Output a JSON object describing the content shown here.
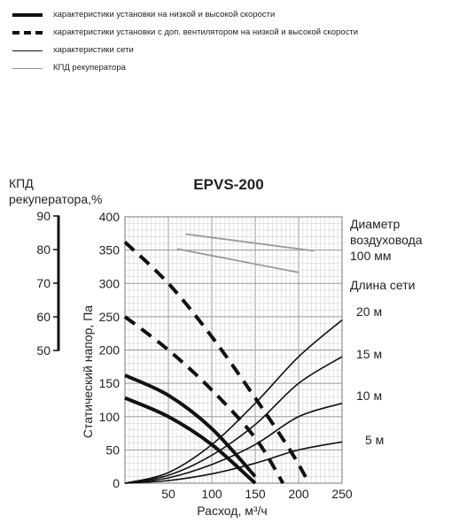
{
  "legend": [
    {
      "label": "характеристики установки на низкой и высокой скорости",
      "style": "thick-solid"
    },
    {
      "label": "характеристики установки с доп. вентилятором на низкой и высокой скорости",
      "style": "thick-dashed"
    },
    {
      "label": "характеристики сети",
      "style": "thin-solid"
    },
    {
      "label": "КПД рекуператора",
      "style": "thin-gray"
    }
  ],
  "chart_data": {
    "type": "line",
    "title": "EPVS-200",
    "xlabel": "Расход, м³/ч",
    "ylabel": "Статический напор, Па",
    "y2label": [
      "КПД",
      "рекуператора,%"
    ],
    "xlim": [
      0,
      250
    ],
    "ylim": [
      0,
      400
    ],
    "y2lim": [
      50,
      90
    ],
    "x_ticks": [
      "50",
      "100",
      "150",
      "200",
      "250"
    ],
    "y_ticks": [
      "0",
      "50",
      "100",
      "150",
      "200",
      "250",
      "300",
      "350",
      "400"
    ],
    "y2_ticks": [
      "50",
      "60",
      "70",
      "80",
      "90"
    ],
    "grid": true,
    "colors": {
      "main": "#111111",
      "efficiency": "#999999",
      "grid": "#bbbbbb"
    },
    "right_labels": {
      "duct_diameter": [
        "Диаметр",
        "воздуховода",
        "100 мм"
      ],
      "network_length": "Длина сети",
      "lengths": [
        "20 м",
        "15 м",
        "10 м",
        "5 м"
      ]
    },
    "series": [
      {
        "kind": "fan",
        "points": [
          [
            0,
            162
          ],
          [
            50,
            132
          ],
          [
            100,
            82
          ],
          [
            150,
            10
          ]
        ]
      },
      {
        "kind": "fan",
        "points": [
          [
            0,
            128
          ],
          [
            50,
            100
          ],
          [
            100,
            58
          ],
          [
            150,
            0
          ]
        ]
      },
      {
        "kind": "fan-boost",
        "points": [
          [
            0,
            362
          ],
          [
            50,
            300
          ],
          [
            100,
            220
          ],
          [
            150,
            128
          ],
          [
            190,
            50
          ],
          [
            212,
            0
          ]
        ]
      },
      {
        "kind": "fan-boost",
        "points": [
          [
            0,
            250
          ],
          [
            50,
            200
          ],
          [
            100,
            140
          ],
          [
            150,
            68
          ],
          [
            182,
            0
          ]
        ]
      },
      {
        "kind": "network",
        "label": "20 м",
        "points": [
          [
            0,
            0
          ],
          [
            50,
            16
          ],
          [
            100,
            58
          ],
          [
            150,
            120
          ],
          [
            200,
            190
          ],
          [
            250,
            245
          ]
        ]
      },
      {
        "kind": "network",
        "label": "15 м",
        "points": [
          [
            0,
            0
          ],
          [
            50,
            12
          ],
          [
            100,
            42
          ],
          [
            150,
            88
          ],
          [
            200,
            150
          ],
          [
            250,
            190
          ]
        ]
      },
      {
        "kind": "network",
        "label": "10 м",
        "points": [
          [
            0,
            0
          ],
          [
            50,
            8
          ],
          [
            100,
            28
          ],
          [
            150,
            58
          ],
          [
            200,
            100
          ],
          [
            250,
            120
          ]
        ]
      },
      {
        "kind": "network",
        "label": "5 м",
        "points": [
          [
            0,
            0
          ],
          [
            50,
            4
          ],
          [
            100,
            14
          ],
          [
            150,
            30
          ],
          [
            200,
            50
          ],
          [
            250,
            62
          ]
        ]
      },
      {
        "kind": "efficiency",
        "points": [
          [
            70,
            84.6
          ],
          [
            218,
            79.6
          ]
        ]
      },
      {
        "kind": "efficiency",
        "points": [
          [
            60,
            80.2
          ],
          [
            200,
            73.2
          ]
        ]
      }
    ]
  }
}
